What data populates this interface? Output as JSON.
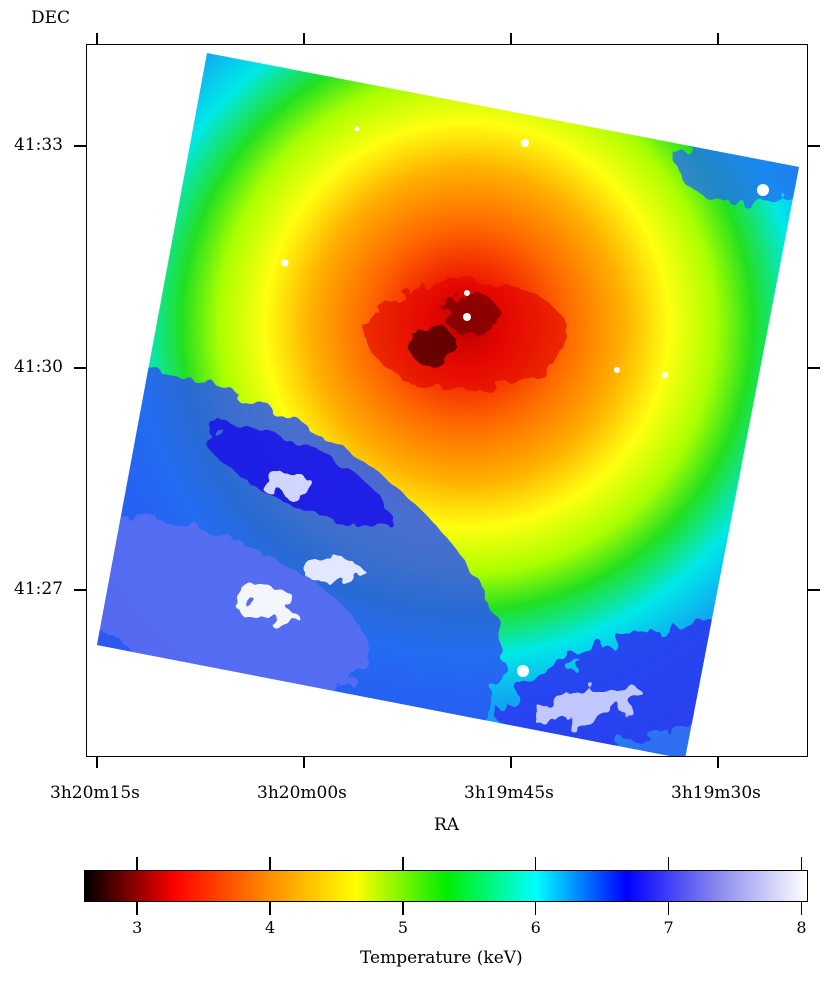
{
  "map": {
    "ylabel": "DEC",
    "xlabel": "RA",
    "x_ticks": [
      "3h20m15s",
      "3h20m00s",
      "3h19m45s",
      "3h19m30s"
    ],
    "y_ticks": [
      "41:33",
      "41:30",
      "41:27"
    ]
  },
  "chart_data": {
    "type": "heatmap",
    "xlabel": "RA",
    "ylabel": "DEC",
    "x_tick_labels": [
      "3h20m15s",
      "3h20m00s",
      "3h19m45s",
      "3h19m30s"
    ],
    "y_tick_labels": [
      "41:33",
      "41:30",
      "41:27"
    ],
    "value_field": "temperature_keV",
    "center_temperature_keV": 3.0,
    "outer_temperature_keV": 7.2,
    "colorbar": {
      "label": "Temperature (keV)",
      "range": [
        2.6,
        8.05
      ],
      "ticks": [
        3,
        4,
        5,
        6,
        7,
        8
      ],
      "tick_labels": [
        "3",
        "4",
        "5",
        "6",
        "7",
        "8"
      ],
      "colors": [
        "#000000",
        "#ff0000",
        "#ff8800",
        "#ffff00",
        "#00ee00",
        "#00ffff",
        "#0000ff",
        "#8888ee",
        "#ffffff"
      ]
    }
  }
}
